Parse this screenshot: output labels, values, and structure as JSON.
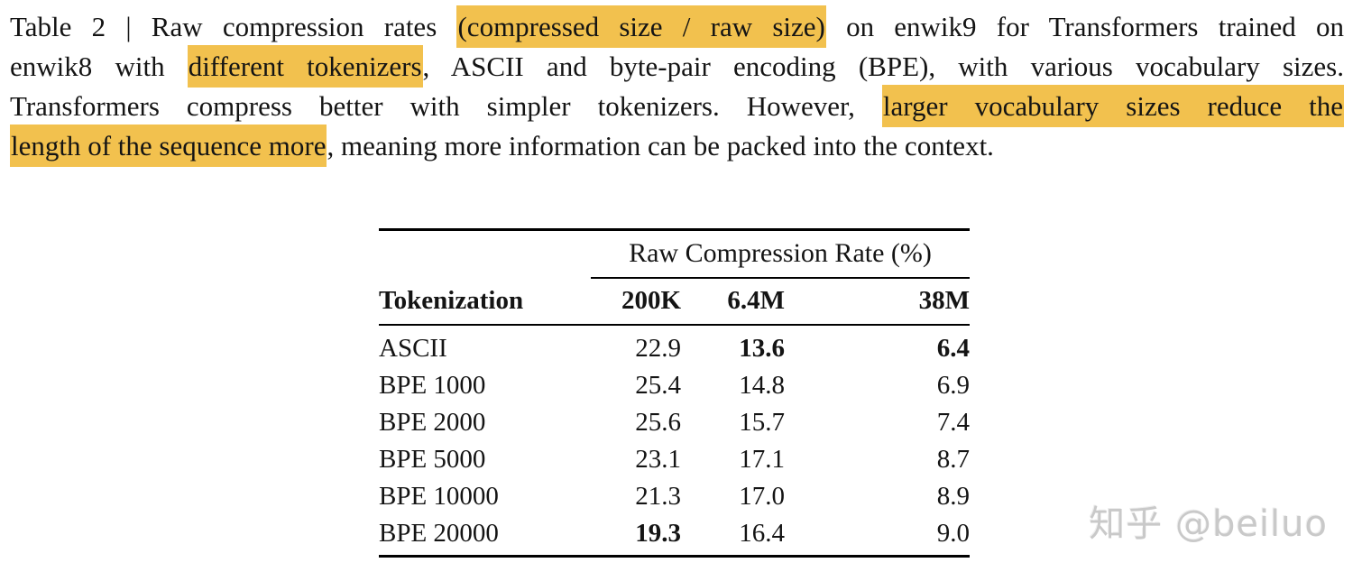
{
  "colors": {
    "highlight": "#F2C14E"
  },
  "caption": {
    "lines": [
      {
        "justify": true,
        "segments": [
          {
            "t": "Table 2 | Raw compression rates ",
            "hl": false
          },
          {
            "t": "(compressed size / raw size)",
            "hl": true
          },
          {
            "t": " on enwik9 for Transformers trained on",
            "hl": false
          }
        ]
      },
      {
        "justify": true,
        "segments": [
          {
            "t": "enwik8 with ",
            "hl": false
          },
          {
            "t": "different tokenizers",
            "hl": true
          },
          {
            "t": ", ASCII and byte-pair encoding (BPE), with various vocabulary sizes.",
            "hl": false
          }
        ]
      },
      {
        "justify": true,
        "segments": [
          {
            "t": "Transformers compress better with simpler tokenizers. However, ",
            "hl": false
          },
          {
            "t": "larger vocabulary sizes reduce the",
            "hl": true
          }
        ]
      },
      {
        "justify": false,
        "segments": [
          {
            "t": "length of the sequence more",
            "hl": true
          },
          {
            "t": ", meaning more information can be packed into the context.",
            "hl": false
          }
        ]
      }
    ]
  },
  "table": {
    "header_group": "Raw Compression Rate (%)",
    "col_header": "Tokenization",
    "columns": [
      "200K",
      "6.4M",
      "38M"
    ],
    "rows": [
      {
        "label": "ASCII",
        "values": [
          "22.9",
          "13.6",
          "6.4"
        ],
        "bold": [
          false,
          true,
          true
        ]
      },
      {
        "label": "BPE 1000",
        "values": [
          "25.4",
          "14.8",
          "6.9"
        ],
        "bold": [
          false,
          false,
          false
        ]
      },
      {
        "label": "BPE 2000",
        "values": [
          "25.6",
          "15.7",
          "7.4"
        ],
        "bold": [
          false,
          false,
          false
        ]
      },
      {
        "label": "BPE 5000",
        "values": [
          "23.1",
          "17.1",
          "8.7"
        ],
        "bold": [
          false,
          false,
          false
        ]
      },
      {
        "label": "BPE 10000",
        "values": [
          "21.3",
          "17.0",
          "8.9"
        ],
        "bold": [
          false,
          false,
          false
        ]
      },
      {
        "label": "BPE 20000",
        "values": [
          "19.3",
          "16.4",
          "9.0"
        ],
        "bold": [
          true,
          false,
          false
        ]
      }
    ]
  },
  "watermark": {
    "text": "知乎 @beiluo"
  }
}
